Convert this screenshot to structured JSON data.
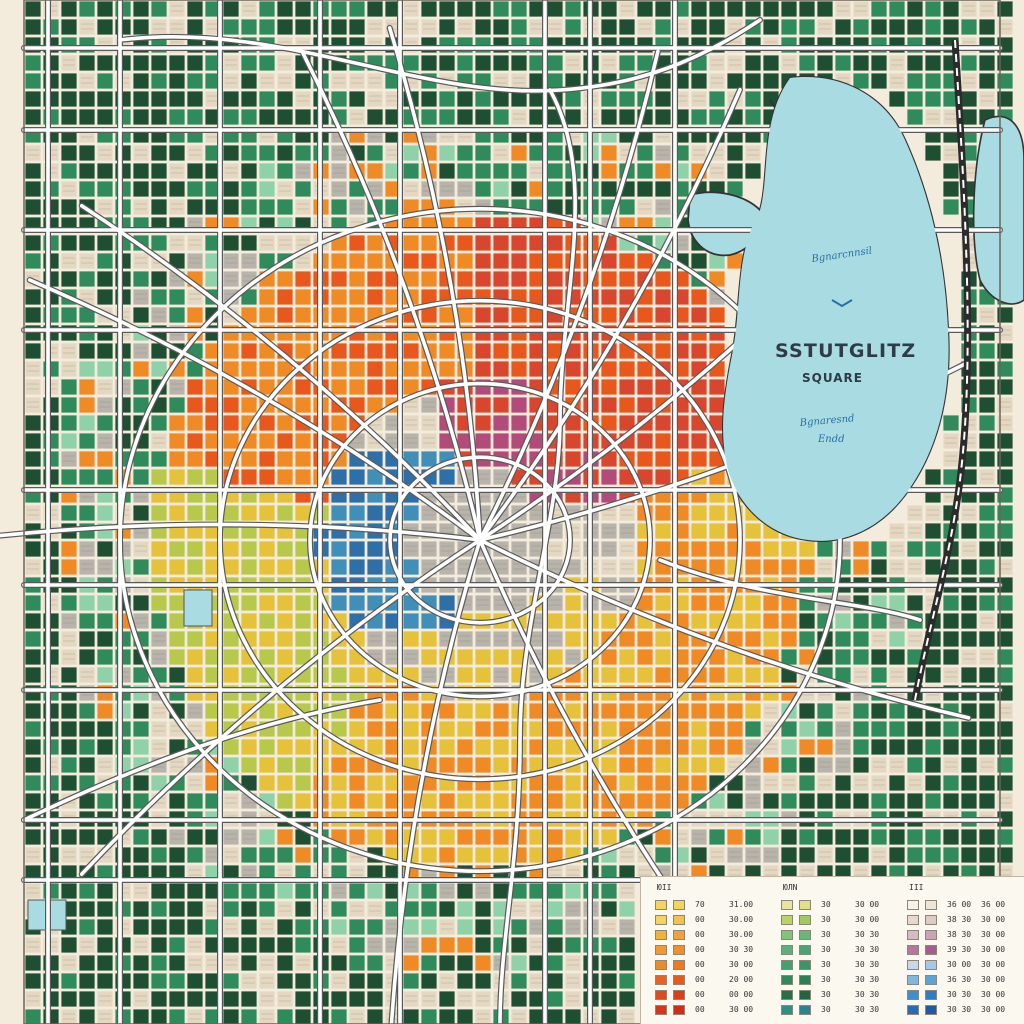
{
  "map": {
    "title": "SSTUTGLITZ",
    "subtitle": "SQUARE",
    "lake_label_top": "Bgnarcnnsil",
    "lake_label_bottom_a": "Bgnaresnd",
    "lake_label_bottom_b": "Endd",
    "colors": {
      "paper": "#f3ecdc",
      "road": "#ffffff",
      "road_edge": "#5a5a5a",
      "water": "#a8dbe2",
      "water_edge": "#333333",
      "forest": "#1f4f33",
      "green": "#2f8a5c",
      "mint": "#8fd1a8",
      "orange": "#f08a24",
      "deep_orange": "#e8581d",
      "red": "#d9462e",
      "yellow": "#e6c23a",
      "lime": "#b7c84a",
      "blue": "#2e6fa8",
      "magenta": "#b24b7a",
      "beige": "#e4d8c2",
      "gray": "#b8b4ac"
    }
  },
  "legend": {
    "columns": [
      {
        "header": "ЮII",
        "rows": [
          {
            "swatch_a": "#f4d35e",
            "swatch_b": "#f4d35e",
            "text_a": "70",
            "text_b": "31.00"
          },
          {
            "swatch_a": "#f4d35e",
            "swatch_b": "#f2c14e",
            "text_a": "00",
            "text_b": "30.00"
          },
          {
            "swatch_a": "#f2b13a",
            "swatch_b": "#f2a23a",
            "text_a": "00",
            "text_b": "30.00"
          },
          {
            "swatch_a": "#f29a2e",
            "swatch_b": "#f0902a",
            "text_a": "00",
            "text_b": "30 30"
          },
          {
            "swatch_a": "#ee8a24",
            "swatch_b": "#ec7a22",
            "text_a": "00",
            "text_b": "30 00"
          },
          {
            "swatch_a": "#e9621e",
            "swatch_b": "#e85a1c",
            "text_a": "00",
            "text_b": "20 00"
          },
          {
            "swatch_a": "#e24a1c",
            "swatch_b": "#db3e1a",
            "text_a": "00",
            "text_b": "00 00"
          },
          {
            "swatch_a": "#d8361a",
            "swatch_b": "#cf2e18",
            "text_a": "00",
            "text_b": "30 00"
          }
        ]
      },
      {
        "header": "ЮЛΝ",
        "rows": [
          {
            "swatch_a": "#e8e4a0",
            "swatch_b": "#e0df8a",
            "text_a": "30",
            "text_b": "30 00"
          },
          {
            "swatch_a": "#b7d36a",
            "swatch_b": "#9fcb5e",
            "text_a": "30",
            "text_b": "30 00"
          },
          {
            "swatch_a": "#7fc478",
            "swatch_b": "#66b878",
            "text_a": "30",
            "text_b": "30 30"
          },
          {
            "swatch_a": "#5cb07e",
            "swatch_b": "#4aa476",
            "text_a": "30",
            "text_b": "30 30"
          },
          {
            "swatch_a": "#43a070",
            "swatch_b": "#39956a",
            "text_a": "30",
            "text_b": "30 30"
          },
          {
            "swatch_a": "#2f8a5c",
            "swatch_b": "#2a7f55",
            "text_a": "30",
            "text_b": "30 30"
          },
          {
            "swatch_a": "#247048",
            "swatch_b": "#1f6642",
            "text_a": "30",
            "text_b": "30 30"
          },
          {
            "swatch_a": "#2e8f86",
            "swatch_b": "#2a8490",
            "text_a": "30",
            "text_b": "30 30"
          }
        ]
      },
      {
        "header": "ΙΙΙ",
        "rows": [
          {
            "swatch_a": "#f6f2ea",
            "swatch_b": "#ede5da",
            "text_a": "36 00",
            "text_b": "36 00"
          },
          {
            "swatch_a": "#e6d8cf",
            "swatch_b": "#dccbc4",
            "text_a": "38 30",
            "text_b": "30 00"
          },
          {
            "swatch_a": "#d6b9c4",
            "swatch_b": "#cba3b6",
            "text_a": "38 30",
            "text_b": "30 00"
          },
          {
            "swatch_a": "#b776a0",
            "swatch_b": "#a85b8e",
            "text_a": "39 30",
            "text_b": "30 00"
          },
          {
            "swatch_a": "#c8d7ea",
            "swatch_b": "#a9c6e4",
            "text_a": "30 00",
            "text_b": "30 00"
          },
          {
            "swatch_a": "#7fb7e0",
            "swatch_b": "#5aa4d8",
            "text_a": "36 30",
            "text_b": "30 00"
          },
          {
            "swatch_a": "#3f8fcf",
            "swatch_b": "#2f7cc2",
            "text_a": "30 30",
            "text_b": "30 00"
          },
          {
            "swatch_a": "#2a6cb1",
            "swatch_b": "#225aa0",
            "text_a": "30 30",
            "text_b": "30 00"
          }
        ]
      }
    ]
  }
}
